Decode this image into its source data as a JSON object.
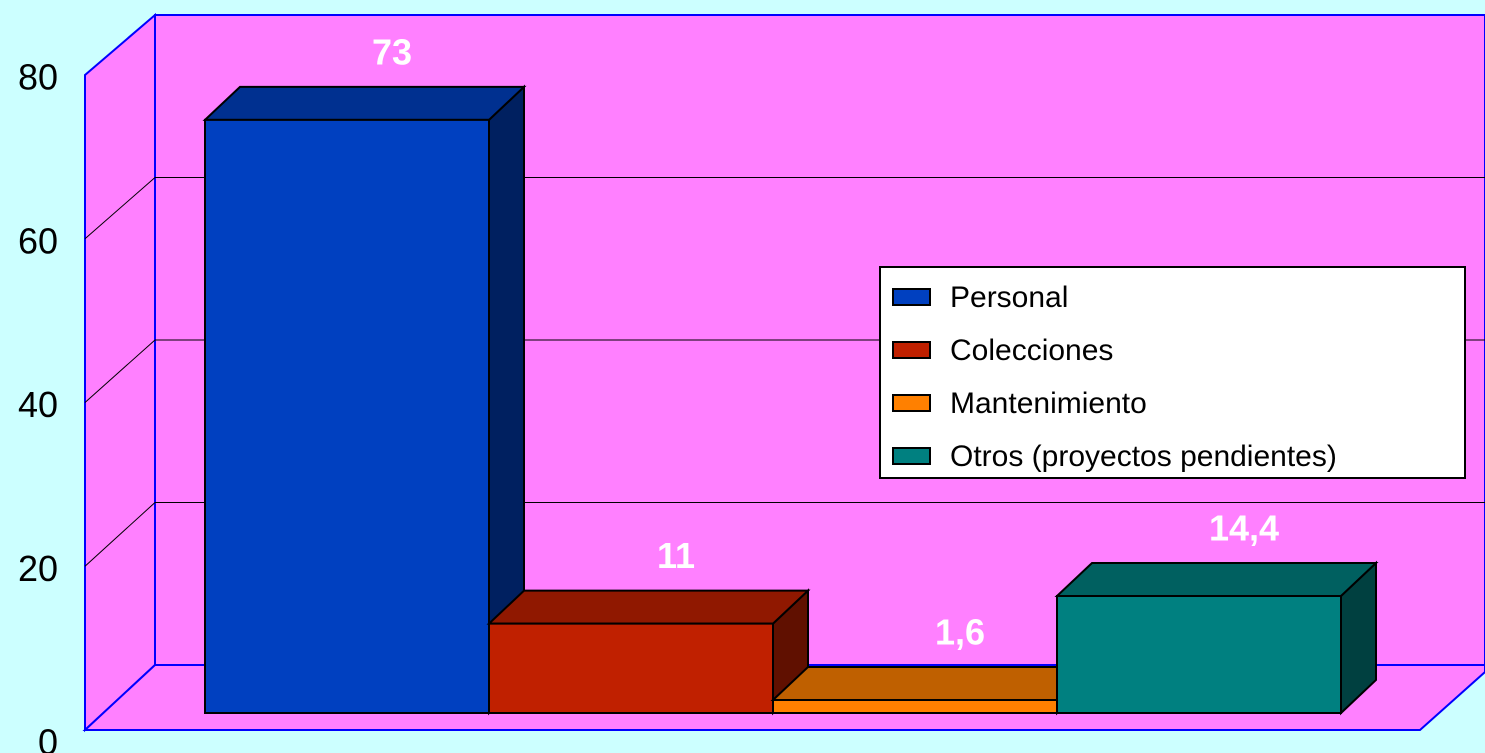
{
  "chart_data": {
    "type": "bar",
    "categories": [
      null
    ],
    "series": [
      {
        "name": "Personal",
        "color": "#0040c0",
        "values": [
          73
        ],
        "value_labels": [
          "73"
        ]
      },
      {
        "name": "Colecciones",
        "color": "#c02000",
        "values": [
          11
        ],
        "value_labels": [
          "11"
        ]
      },
      {
        "name": "Mantenimiento",
        "color": "#ff8000",
        "values": [
          1.6
        ],
        "value_labels": [
          "1,6"
        ]
      },
      {
        "name": "Otros (proyectos pendientes)",
        "color": "#008080",
        "values": [
          14.4
        ],
        "value_labels": [
          "14,4"
        ]
      }
    ],
    "ylim": [
      0,
      80
    ],
    "yticks": [
      0,
      20,
      40,
      60,
      80
    ],
    "grid": true,
    "legend": "right"
  }
}
